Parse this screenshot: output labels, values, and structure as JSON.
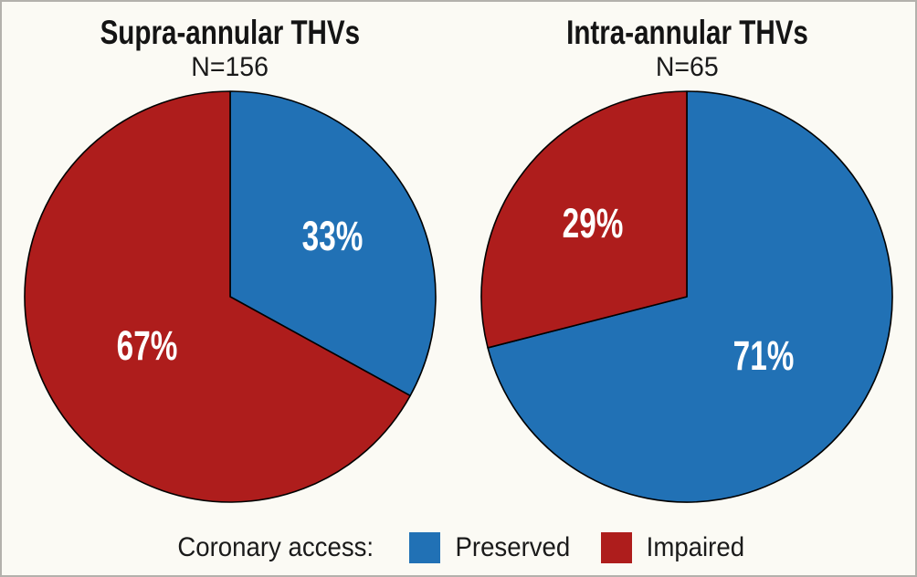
{
  "page": {
    "background": "#fbfaf4",
    "border_color": "#b3b1ac"
  },
  "colors": {
    "preserved": "#2171b5",
    "impaired": "#ae1d1c",
    "outline": "#000000",
    "label_text": "#ffffff"
  },
  "chart_data": [
    {
      "type": "pie",
      "title": "Supra-annular THVs",
      "subtitle": "N=156",
      "n": 156,
      "start_angle_deg": 0,
      "direction": "clockwise",
      "slices": [
        {
          "label": "Preserved",
          "value": 33,
          "display": "33%",
          "color_key": "preserved"
        },
        {
          "label": "Impaired",
          "value": 67,
          "display": "67%",
          "color_key": "impaired"
        }
      ]
    },
    {
      "type": "pie",
      "title": "Intra-annular THVs",
      "subtitle": "N=65",
      "n": 65,
      "start_angle_deg": 0,
      "direction": "clockwise",
      "slices": [
        {
          "label": "Preserved",
          "value": 71,
          "display": "71%",
          "color_key": "preserved"
        },
        {
          "label": "Impaired",
          "value": 29,
          "display": "29%",
          "color_key": "impaired"
        }
      ]
    }
  ],
  "legend": {
    "prefix": "Coronary access:",
    "items": [
      {
        "label": "Preserved",
        "color_key": "preserved"
      },
      {
        "label": "Impaired",
        "color_key": "impaired"
      }
    ]
  }
}
